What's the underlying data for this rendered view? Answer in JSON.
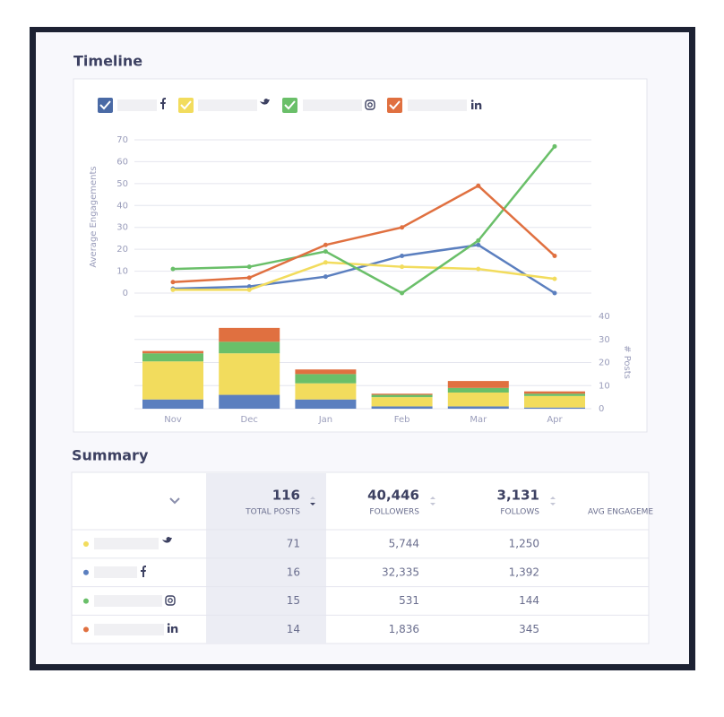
{
  "header": {
    "timeline_title": "Timeline",
    "summary_title": "Summary"
  },
  "chart_data": {
    "type": "line",
    "categories": [
      "Nov",
      "Dec",
      "Jan",
      "Feb",
      "Mar",
      "Apr"
    ],
    "ylabel": "Average Engagements",
    "y2label": "# Posts",
    "ylim": [
      0,
      70
    ],
    "yticks": [
      0,
      10,
      20,
      30,
      40,
      50,
      60,
      70
    ],
    "y2lim": [
      0,
      40
    ],
    "y2ticks": [
      0,
      10,
      20,
      30,
      40
    ],
    "grid": true,
    "series": [
      {
        "type": "line",
        "color": "#5b7fbf",
        "values": [
          2,
          3,
          7.5,
          17,
          22,
          0
        ]
      },
      {
        "type": "line",
        "color": "#f2dc5d",
        "values": [
          1.5,
          1.5,
          14,
          12,
          11,
          6.5
        ]
      },
      {
        "type": "line",
        "color": "#6abf69",
        "values": [
          11,
          12,
          19,
          0,
          24,
          67
        ]
      },
      {
        "type": "line",
        "color": "#e07040",
        "values": [
          5,
          7,
          22,
          30,
          49,
          17
        ]
      },
      {
        "type": "bar",
        "axis": "y2",
        "color": "#5b7fbf",
        "values": [
          4,
          6,
          4,
          1,
          1,
          0.5
        ]
      },
      {
        "type": "bar",
        "axis": "y2",
        "color": "#f2dc5d",
        "values": [
          16.5,
          18,
          7,
          4,
          6,
          5
        ]
      },
      {
        "type": "bar",
        "axis": "y2",
        "color": "#6abf69",
        "values": [
          3.5,
          5,
          4,
          1,
          2,
          1
        ]
      },
      {
        "type": "bar",
        "axis": "y2",
        "color": "#e07040",
        "values": [
          1,
          6,
          2,
          0.5,
          3,
          1
        ]
      }
    ]
  },
  "table": {
    "columns": [
      {
        "value": "116",
        "label": "TOTAL POSTS"
      },
      {
        "value": "40,446",
        "label": "FOLLOWERS"
      },
      {
        "value": "3,131",
        "label": "FOLLOWS"
      },
      {
        "label": "AVG ENGAGEME"
      }
    ],
    "rows": [
      {
        "color": "#f2dc5d",
        "cells": [
          "71",
          "5,744",
          "1,250"
        ]
      },
      {
        "color": "#5b7fbf",
        "cells": [
          "16",
          "32,335",
          "1,392"
        ]
      },
      {
        "color": "#6abf69",
        "cells": [
          "15",
          "531",
          "144"
        ]
      },
      {
        "color": "#e07040",
        "cells": [
          "14",
          "1,836",
          "345"
        ]
      }
    ]
  }
}
